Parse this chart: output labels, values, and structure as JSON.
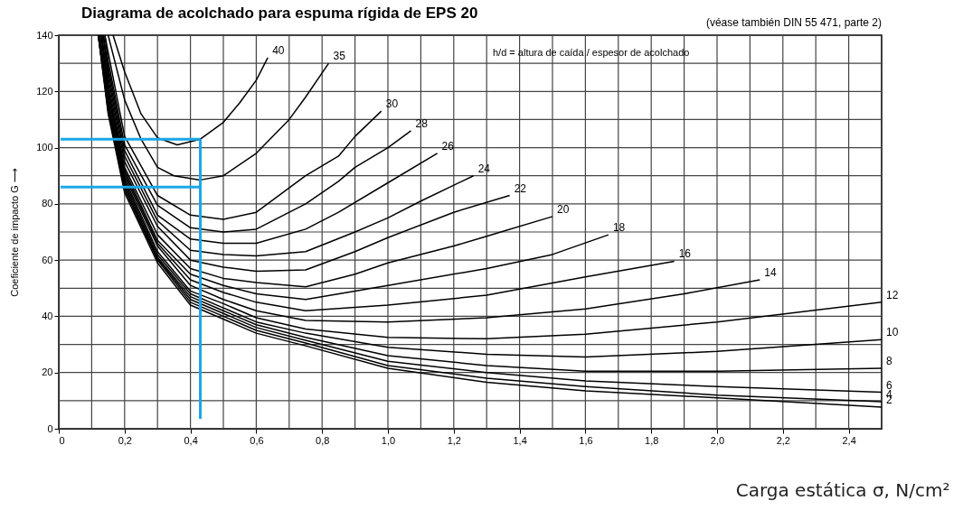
{
  "chart_data": {
    "type": "line",
    "title": "Diagrama de acolchado para espuma rígida de EPS 20",
    "subtitle": "(véase también DIN 55 471, parte 2)",
    "xlabel": "Carga estática σ, N/cm²",
    "ylabel": "Coeficiente de impacto G ⟶",
    "annotations": [
      "h/d = altura de caída / espesor de acolchado"
    ],
    "xlim": [
      0,
      2.5
    ],
    "xticks": [
      0,
      {
        "value": 0.1,
        "label": null
      },
      {
        "value": 0.2,
        "label": "0,2"
      },
      {
        "value": 0.3,
        "label": null
      },
      {
        "value": 0.4,
        "label": "0,4"
      },
      {
        "value": 0.5,
        "label": null
      },
      {
        "value": 0.6,
        "label": "0,6"
      },
      {
        "value": 0.7,
        "label": null
      },
      {
        "value": 0.8,
        "label": "0,8"
      },
      {
        "value": 0.9,
        "label": null
      },
      {
        "value": 1.0,
        "label": "1,0"
      },
      {
        "value": 1.1,
        "label": null
      },
      {
        "value": 1.2,
        "label": "1,2"
      },
      {
        "value": 1.3,
        "label": null
      },
      {
        "value": 1.4,
        "label": "1,4"
      },
      {
        "value": 1.5,
        "label": null
      },
      {
        "value": 1.6,
        "label": "1,6"
      },
      {
        "value": 1.7,
        "label": null
      },
      {
        "value": 1.8,
        "label": "1,8"
      },
      {
        "value": 1.9,
        "label": null
      },
      {
        "value": 2.0,
        "label": "2,0"
      },
      {
        "value": 2.1,
        "label": null
      },
      {
        "value": 2.2,
        "label": "2,2"
      },
      {
        "value": 2.3,
        "label": null
      },
      {
        "value": 2.4,
        "label": "2,4"
      }
    ],
    "ylim": [
      0,
      140
    ],
    "yticks": [
      0,
      {
        "value": 10,
        "label": null
      },
      20,
      {
        "value": 30,
        "label": null
      },
      40,
      {
        "value": 50,
        "label": null
      },
      60,
      {
        "value": 70,
        "label": null
      },
      80,
      {
        "value": 90,
        "label": null
      },
      100,
      {
        "value": 110,
        "label": null
      },
      120,
      {
        "value": 130,
        "label": null
      },
      140
    ],
    "grid": true,
    "series": [
      {
        "name": "40",
        "color": "#000000",
        "x": [
          0.165,
          0.2,
          0.25,
          0.3,
          0.36,
          0.43,
          0.5,
          0.55,
          0.6,
          0.635
        ],
        "values": [
          140,
          127,
          112,
          103.5,
          101,
          103,
          109,
          116,
          124,
          132
        ]
      },
      {
        "name": "35",
        "color": "#000000",
        "x": [
          0.15,
          0.2,
          0.25,
          0.3,
          0.35,
          0.43,
          0.5,
          0.6,
          0.7,
          0.75,
          0.82
        ],
        "values": [
          140,
          117,
          103,
          93,
          90,
          88.5,
          90,
          98,
          110,
          118,
          130
        ]
      },
      {
        "name": "30",
        "color": "#000000",
        "x": [
          0.14,
          0.15,
          0.2,
          0.3,
          0.4,
          0.5,
          0.6,
          0.75,
          0.85,
          0.9,
          0.98
        ],
        "values": [
          140,
          134,
          104,
          83,
          76,
          74.5,
          77,
          90,
          97,
          104,
          113
        ]
      },
      {
        "name": "28",
        "color": "#000000",
        "x": [
          0.14,
          0.15,
          0.2,
          0.3,
          0.4,
          0.5,
          0.6,
          0.75,
          0.85,
          0.9,
          1.0,
          1.07
        ],
        "values": [
          140,
          131,
          101,
          79.5,
          71.5,
          70,
          71,
          80,
          88,
          93,
          100,
          106
        ]
      },
      {
        "name": "26",
        "color": "#000000",
        "x": [
          0.135,
          0.15,
          0.2,
          0.3,
          0.4,
          0.5,
          0.6,
          0.75,
          0.85,
          1.0,
          1.15
        ],
        "values": [
          140,
          129,
          99,
          76,
          67.5,
          66,
          66,
          71,
          77,
          87.5,
          98
        ]
      },
      {
        "name": "24",
        "color": "#000000",
        "x": [
          0.135,
          0.15,
          0.2,
          0.3,
          0.4,
          0.5,
          0.6,
          0.75,
          0.9,
          1.0,
          1.1,
          1.26
        ],
        "values": [
          140,
          127,
          97,
          74,
          63.5,
          62,
          61.5,
          63,
          70,
          75,
          81,
          90
        ]
      },
      {
        "name": "22",
        "color": "#000000",
        "x": [
          0.135,
          0.15,
          0.2,
          0.3,
          0.4,
          0.5,
          0.6,
          0.75,
          0.9,
          1.0,
          1.2,
          1.37
        ],
        "values": [
          140,
          125,
          95,
          72,
          60,
          57.5,
          56,
          56.5,
          63,
          68,
          77,
          83
        ]
      },
      {
        "name": "20",
        "color": "#000000",
        "x": [
          0.13,
          0.15,
          0.2,
          0.3,
          0.4,
          0.5,
          0.6,
          0.75,
          0.9,
          1.0,
          1.2,
          1.3,
          1.5
        ],
        "values": [
          140,
          123,
          93,
          69,
          57,
          53.5,
          52,
          50.5,
          55,
          59,
          65,
          68.5,
          75.5
        ]
      },
      {
        "name": "18",
        "color": "#000000",
        "x": [
          0.13,
          0.15,
          0.2,
          0.3,
          0.4,
          0.5,
          0.6,
          0.75,
          0.9,
          1.0,
          1.3,
          1.5,
          1.67
        ],
        "values": [
          140,
          121,
          92,
          67,
          55,
          51,
          48,
          46,
          49,
          51,
          57,
          62,
          69
        ]
      },
      {
        "name": "16",
        "color": "#000000",
        "x": [
          0.13,
          0.15,
          0.2,
          0.3,
          0.4,
          0.5,
          0.6,
          0.75,
          1.0,
          1.3,
          1.6,
          1.87
        ],
        "values": [
          140,
          120,
          91,
          66,
          53,
          48.5,
          45,
          42,
          44,
          47.5,
          54,
          59.6
        ]
      },
      {
        "name": "14",
        "color": "#000000",
        "x": [
          0.13,
          0.15,
          0.2,
          0.3,
          0.4,
          0.5,
          0.6,
          0.75,
          1.0,
          1.3,
          1.6,
          1.9,
          2.13
        ],
        "values": [
          140,
          119,
          90,
          65,
          51,
          46,
          42,
          38.5,
          38,
          39.5,
          42.6,
          48,
          53
        ]
      },
      {
        "name": "12",
        "color": "#000000",
        "x": [
          0.125,
          0.15,
          0.2,
          0.3,
          0.4,
          0.5,
          0.6,
          0.75,
          1.0,
          1.3,
          1.6,
          2.0,
          2.5
        ],
        "values": [
          140,
          117,
          89,
          63,
          49,
          44.5,
          39.5,
          35.5,
          32.5,
          32,
          33.6,
          38,
          45
        ]
      },
      {
        "name": "10",
        "color": "#000000",
        "x": [
          0.125,
          0.15,
          0.2,
          0.3,
          0.4,
          0.5,
          0.6,
          0.75,
          1.0,
          1.3,
          1.6,
          2.0,
          2.5
        ],
        "values": [
          140,
          116,
          88,
          62,
          48,
          43,
          38,
          34,
          29,
          26.5,
          25.5,
          27.5,
          31.7
        ]
      },
      {
        "name": "8",
        "color": "#000000",
        "x": [
          0.12,
          0.15,
          0.2,
          0.3,
          0.4,
          0.5,
          0.6,
          0.75,
          1.0,
          1.3,
          1.6,
          2.0,
          2.5
        ],
        "values": [
          140,
          115,
          87,
          61,
          47,
          42,
          37,
          32.5,
          26,
          22.5,
          20.5,
          20.5,
          21.5
        ]
      },
      {
        "name": "6",
        "color": "#000000",
        "x": [
          0.12,
          0.15,
          0.2,
          0.3,
          0.4,
          0.5,
          0.6,
          0.75,
          1.0,
          1.3,
          1.6,
          2.0,
          2.5
        ],
        "values": [
          140,
          114,
          86,
          60.5,
          46,
          41,
          36,
          31.5,
          24,
          20,
          17,
          15,
          13
        ]
      },
      {
        "name": "4",
        "color": "#000000",
        "x": [
          0.12,
          0.15,
          0.2,
          0.3,
          0.4,
          0.5,
          0.6,
          0.75,
          1.0,
          1.3,
          1.6,
          2.0,
          2.5
        ],
        "values": [
          140,
          113,
          85,
          60,
          45,
          40,
          35,
          30.5,
          22.5,
          18,
          15,
          12,
          9.6
        ]
      },
      {
        "name": "2",
        "color": "#000000",
        "x": [
          0.12,
          0.15,
          0.2,
          0.3,
          0.4,
          0.5,
          0.6,
          0.75,
          1.0,
          1.3,
          1.6,
          2.0,
          2.5
        ],
        "values": [
          140,
          112,
          84,
          59,
          44,
          39,
          34,
          29.5,
          21.5,
          16.5,
          13.5,
          11,
          7.7
        ]
      },
      {
        "color": "#1aa7e8",
        "x": [
          0.43,
          0.43
        ],
        "values": [
          3.5,
          103
        ]
      },
      {
        "color": "#1aa7e8",
        "x": [
          0.43,
          0.005
        ],
        "values": [
          103,
          103
        ]
      },
      {
        "color": "#1aa7e8",
        "x": [
          0.43,
          0.005
        ],
        "values": [
          86,
          86
        ]
      }
    ]
  }
}
